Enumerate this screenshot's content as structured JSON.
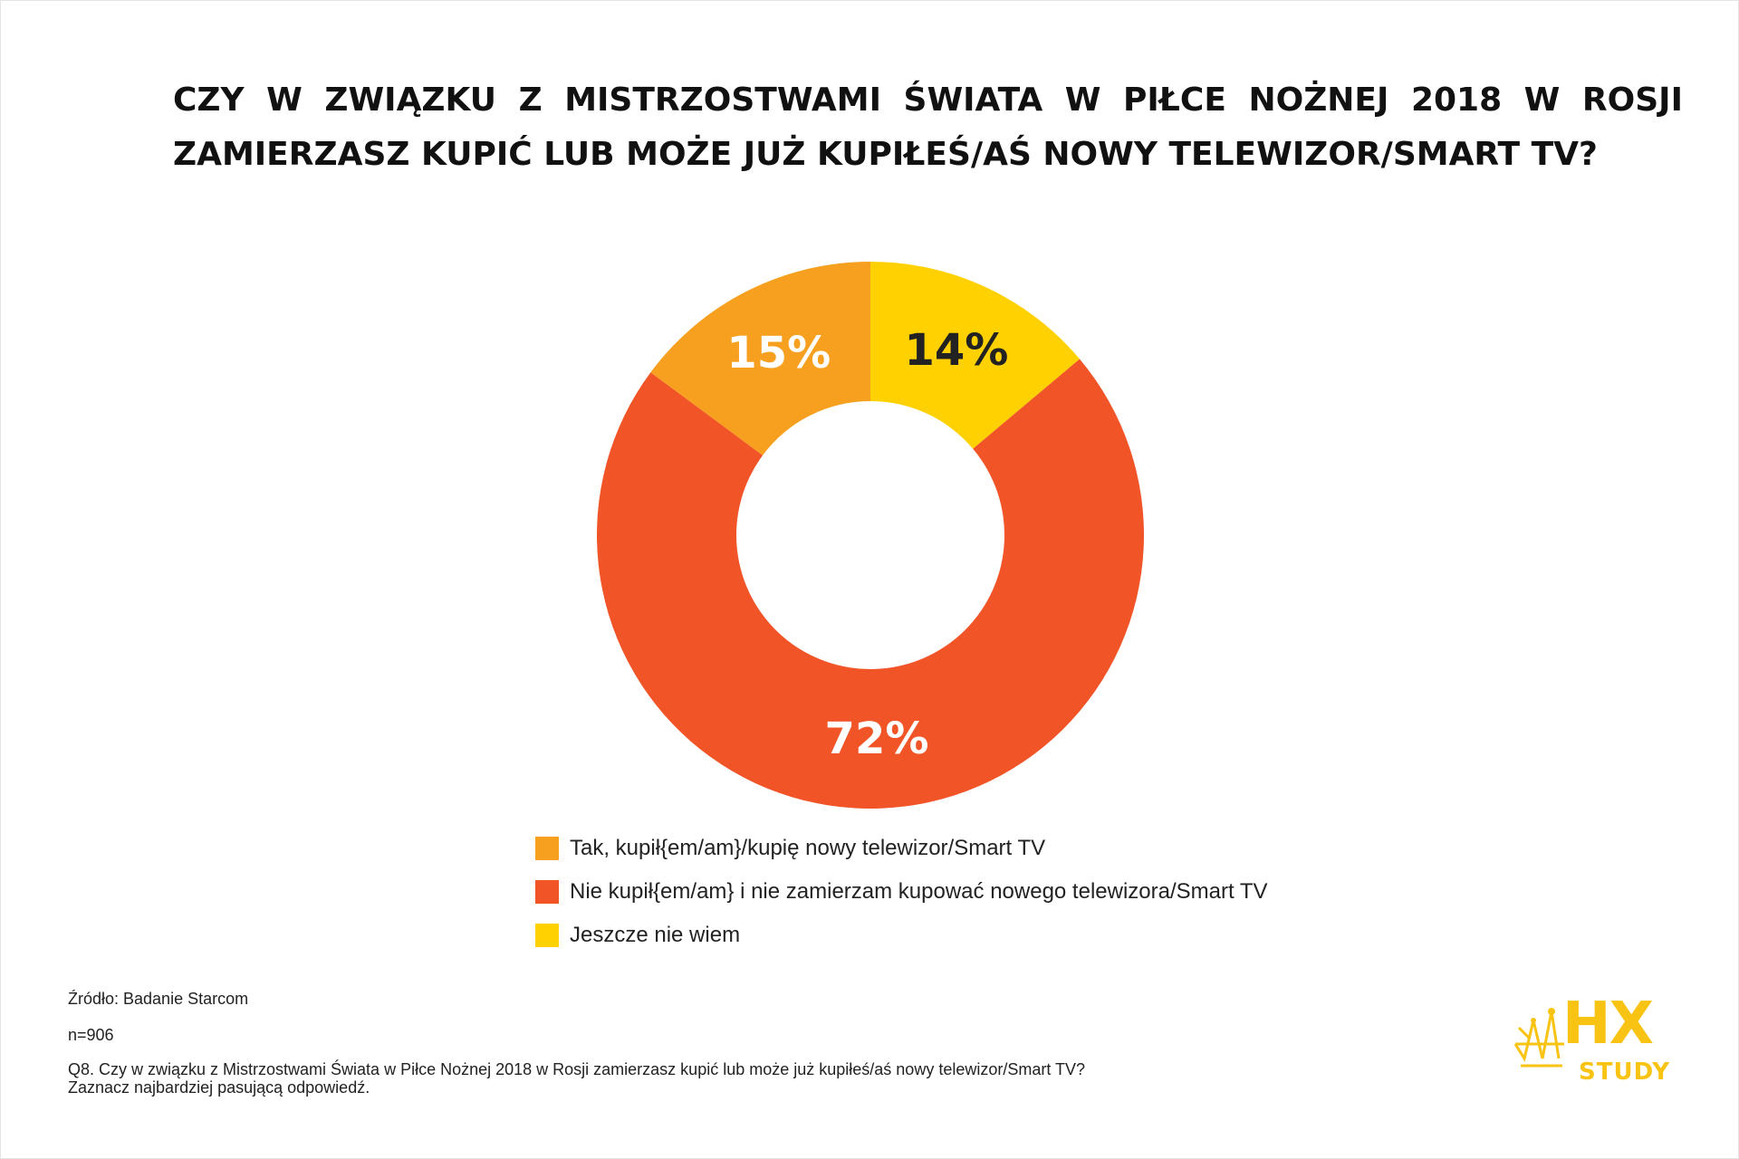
{
  "chart_data": {
    "type": "pie",
    "title": "CZY W ZWIĄZKU Z MISTRZOSTWAMI ŚWIATA W PIŁCE NOŻNEJ 2018 W ROSJI ZAMIERZASZ KUPIĆ LUB MOŻE JUŻ KUPIŁEŚ/AŚ NOWY TELEWIZOR/SMART TV?",
    "title_lines": [
      "CZY W ZWIĄZKU Z MISTRZOSTWAMI ŚWIATA W PIŁCE NOŻNEJ 2018 W ROSJI",
      "ZAMIERZASZ KUPIĆ LUB MOŻE JUŻ KUPIŁEŚ/AŚ NOWY TELEWIZOR/SMART TV?"
    ],
    "donut": true,
    "legend_position": "bottom",
    "slices": [
      {
        "label": "Jeszcze nie wiem",
        "value": 14,
        "display": "14%",
        "color": "#ffd100",
        "label_color": "#222222"
      },
      {
        "label": "Nie kupił{em/am} i nie zamierzam kupować nowego telewizora/Smart TV",
        "value": 72,
        "display": "72%",
        "color": "#f15427",
        "label_color": "#ffffff"
      },
      {
        "label": "Tak, kupił{em/am}/kupię nowy telewizor/Smart TV",
        "value": 15,
        "display": "15%",
        "color": "#f7a020",
        "label_color": "#ffffff"
      }
    ],
    "legend": [
      {
        "label": "Tak, kupił{em/am}/kupię nowy telewizor/Smart TV",
        "color": "#f7a020"
      },
      {
        "label": "Nie kupił{em/am} i nie zamierzam kupować nowego telewizora/Smart TV",
        "color": "#f15427"
      },
      {
        "label": "Jeszcze nie wiem",
        "color": "#ffd100"
      }
    ]
  },
  "footer": {
    "source": "Źródło: Badanie Starcom",
    "sample": "n=906",
    "question_line1": "Q8. Czy w związku z Mistrzostwami Świata w Piłce Nożnej 2018 w Rosji zamierzasz kupić lub może już kupiłeś/aś nowy telewizor/Smart TV?",
    "question_line2": "Zaznacz najbardziej pasującą odpowiedź."
  },
  "logo": {
    "top": "HX",
    "bottom": "STUDY",
    "color": "#f8c312",
    "icon": "crown-icon"
  }
}
